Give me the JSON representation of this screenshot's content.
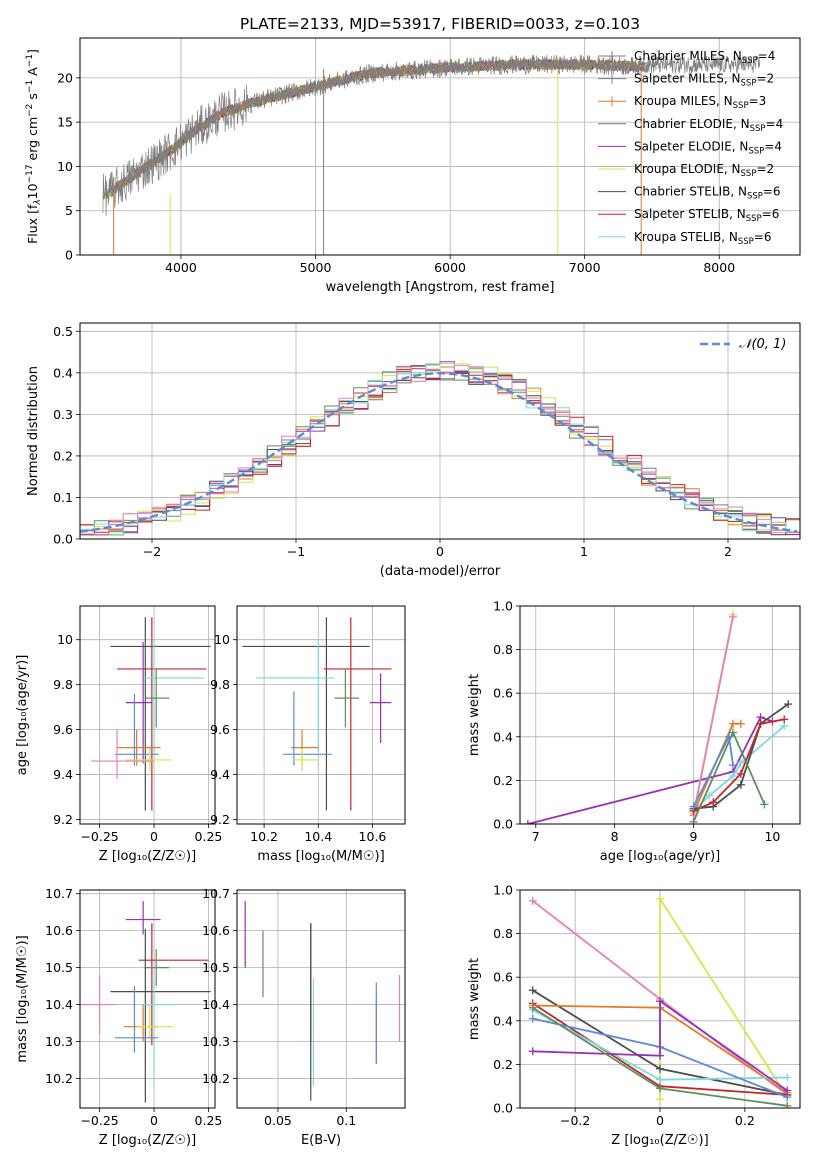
{
  "figure_title": "PLATE=2133, MJD=53917, FIBERID=0033, z=0.103",
  "colors": {
    "Chabrier MILES": "#7f7f7f",
    "Salpeter MILES": "#808080",
    "Kroupa MILES": "#e07b2b",
    "Chabrier ELODIE": "#5f8f5f",
    "Salpeter ELODIE": "#9b30b5",
    "Kroupa ELODIE": "#d4e84a",
    "Chabrier STELIB": "#4d4d4d",
    "Salpeter STELIB": "#c1272d",
    "Kroupa STELIB": "#7fd8dc",
    "extra_blue": "#5b8bd6",
    "extra_pink": "#e77fbf",
    "normal_curve": "#5b8bd6"
  },
  "chart_data": [
    {
      "id": "spectrum",
      "type": "line",
      "title": "PLATE=2133, MJD=53917, FIBERID=0033, z=0.103",
      "xlabel": "wavelength [Angstrom, rest frame]",
      "ylabel_parts": [
        "Flux [f",
        "λ",
        "10",
        "−17",
        " erg cm",
        "−2",
        " s",
        "−1",
        " A",
        "−1",
        "]"
      ],
      "xlim": [
        3250,
        8600
      ],
      "ylim": [
        0,
        24.5
      ],
      "xticks": [
        4000,
        5000,
        6000,
        7000,
        8000
      ],
      "yticks": [
        0,
        5,
        10,
        15,
        20
      ],
      "legend_position": "right",
      "legend": [
        {
          "name": "Chabrier MILES",
          "nssp": "4"
        },
        {
          "name": "Salpeter MILES",
          "nssp": "2"
        },
        {
          "name": "Kroupa MILES",
          "nssp": "3"
        },
        {
          "name": "Chabrier ELODIE",
          "nssp": "4"
        },
        {
          "name": "Salpeter ELODIE",
          "nssp": "4"
        },
        {
          "name": "Kroupa ELODIE",
          "nssp": "2"
        },
        {
          "name": "Chabrier STELIB",
          "nssp": "6"
        },
        {
          "name": "Salpeter STELIB",
          "nssp": "6"
        },
        {
          "name": "Kroupa STELIB",
          "nssp": "6"
        }
      ],
      "continuum_x": [
        3450,
        3700,
        3900,
        4100,
        4300,
        4600,
        5000,
        5400,
        6000,
        6500,
        7000,
        7400
      ],
      "continuum_y": [
        6.8,
        9.5,
        11.5,
        14,
        16,
        17.5,
        19,
        20.5,
        21.2,
        21.5,
        21.5,
        21.3
      ]
    },
    {
      "id": "residuals",
      "type": "histogram",
      "xlabel": "(data-model)/error",
      "ylabel": "Normed distribution",
      "xlim": [
        -2.5,
        2.5
      ],
      "ylim": [
        0,
        0.52
      ],
      "xticks": [
        -2,
        -1,
        0,
        1,
        2
      ],
      "yticks": [
        0.0,
        0.1,
        0.2,
        0.3,
        0.4,
        0.5
      ],
      "legend_label": "𝒩(0, 1)",
      "legend_position": "top-right",
      "bin_width": 0.1
    },
    {
      "id": "age_vs_Z",
      "type": "scatter-errorbar",
      "xlabel": "Z [log₁₀(Z/Z☉)]",
      "ylabel": "age  [log₁₀(age/yr)]",
      "xlim": [
        -0.34,
        0.28
      ],
      "ylim": [
        9.18,
        10.15
      ],
      "xticks": [
        -0.25,
        0.0,
        0.25
      ],
      "yticks": [
        9.2,
        9.4,
        9.6,
        9.8,
        10.0
      ],
      "points": [
        {
          "c": "Chabrier STELIB",
          "x": -0.04,
          "xe": [
            0.16,
            0.3
          ],
          "y": 9.97,
          "ye": [
            0.73,
            0.13
          ]
        },
        {
          "c": "Salpeter STELIB",
          "x": -0.01,
          "xe": [
            0.16,
            0.25
          ],
          "y": 9.87,
          "ye": [
            0.63,
            0.23
          ]
        },
        {
          "c": "Kroupa STELIB",
          "x": 0.0,
          "xe": [
            0.05,
            0.23
          ],
          "y": 9.83,
          "ye": [
            0.33,
            0.17
          ]
        },
        {
          "c": "Chabrier ELODIE",
          "x": 0.01,
          "xe": [
            0.05,
            0.06
          ],
          "y": 9.74,
          "ye": [
            0.13,
            0.13
          ]
        },
        {
          "c": "Salpeter ELODIE",
          "x": -0.05,
          "xe": [
            0.08,
            0.04
          ],
          "y": 9.72,
          "ye": [
            0.27,
            0.27
          ]
        },
        {
          "c": "Kroupa MILES",
          "x": -0.08,
          "xe": [
            0.09,
            0.11
          ],
          "y": 9.52,
          "ye": [
            0.08,
            0.08
          ]
        },
        {
          "c": "extra_blue",
          "x": -0.09,
          "xe": [
            0.09,
            0.11
          ],
          "y": 9.49,
          "ye": [
            0.05,
            0.27
          ]
        },
        {
          "c": "Kroupa ELODIE",
          "x": -0.02,
          "xe": [
            0.11,
            0.1
          ],
          "y": 9.465,
          "ye": [
            0.05,
            0.05
          ]
        },
        {
          "c": "extra_pink",
          "x": -0.17,
          "xe": [
            0.12,
            0.17
          ],
          "y": 9.46,
          "ye": [
            0.08,
            0.14
          ]
        }
      ]
    },
    {
      "id": "age_vs_mass",
      "type": "scatter-errorbar",
      "xlabel": "mass [log₁₀(M/M☉)]",
      "ylabel": "",
      "xlim": [
        10.1,
        10.72
      ],
      "ylim": [
        9.18,
        10.15
      ],
      "xticks": [
        10.2,
        10.4,
        10.6
      ],
      "yticks": [
        9.2,
        9.4,
        9.6,
        9.8,
        10.0
      ],
      "points": [
        {
          "c": "Chabrier STELIB",
          "x": 10.43,
          "xe": [
            0.31,
            0.16
          ],
          "y": 9.97,
          "ye": [
            0.73,
            0.13
          ]
        },
        {
          "c": "Salpeter STELIB",
          "x": 10.52,
          "xe": [
            0.1,
            0.15
          ],
          "y": 9.87,
          "ye": [
            0.63,
            0.23
          ]
        },
        {
          "c": "Kroupa STELIB",
          "x": 10.4,
          "xe": [
            0.23,
            0.06
          ],
          "y": 9.83,
          "ye": [
            0.33,
            0.17
          ]
        },
        {
          "c": "Chabrier ELODIE",
          "x": 10.5,
          "xe": [
            0.04,
            0.05
          ],
          "y": 9.74,
          "ye": [
            0.13,
            0.13
          ]
        },
        {
          "c": "Salpeter ELODIE",
          "x": 10.63,
          "xe": [
            0.04,
            0.04
          ],
          "y": 9.72,
          "ye": [
            0.18,
            0.13
          ]
        },
        {
          "c": "Kroupa MILES",
          "x": 10.34,
          "xe": [
            0.04,
            0.06
          ],
          "y": 9.52,
          "ye": [
            0.08,
            0.08
          ]
        },
        {
          "c": "extra_blue",
          "x": 10.31,
          "xe": [
            0.04,
            0.14
          ],
          "y": 9.49,
          "ye": [
            0.05,
            0.28
          ]
        },
        {
          "c": "Kroupa ELODIE",
          "x": 10.34,
          "xe": [
            0.03,
            0.06
          ],
          "y": 9.465,
          "ye": [
            0.05,
            0.05
          ]
        }
      ]
    },
    {
      "id": "weight_vs_age",
      "type": "line",
      "xlabel": "age  [log₁₀(age/yr)]",
      "ylabel": "mass weight",
      "xlim": [
        6.8,
        10.35
      ],
      "ylim": [
        0,
        1.0
      ],
      "xticks": [
        7,
        8,
        9,
        10
      ],
      "yticks": [
        0.0,
        0.2,
        0.4,
        0.6,
        0.8,
        1.0
      ],
      "series": [
        {
          "c": "Salpeter ELODIE",
          "x": [
            6.9,
            9.5,
            9.85,
            10.0
          ],
          "y": [
            0.0,
            0.24,
            0.49,
            0.47
          ]
        },
        {
          "c": "Kroupa MILES",
          "x": [
            9.0,
            9.5,
            9.6
          ],
          "y": [
            0.05,
            0.46,
            0.46
          ]
        },
        {
          "c": "Kroupa ELODIE",
          "x": [
            9.0,
            9.5
          ],
          "y": [
            0.05,
            0.96
          ]
        },
        {
          "c": "Kroupa STELIB",
          "x": [
            9.0,
            9.2,
            9.5,
            9.6,
            10.15
          ],
          "y": [
            0.06,
            0.13,
            0.22,
            0.28,
            0.45
          ]
        },
        {
          "c": "extra_pink",
          "x": [
            9.0,
            9.5
          ],
          "y": [
            0.04,
            0.95
          ]
        },
        {
          "c": "Chabrier STELIB",
          "x": [
            9.0,
            9.25,
            9.6,
            9.85,
            10.2
          ],
          "y": [
            0.07,
            0.08,
            0.18,
            0.46,
            0.55
          ]
        },
        {
          "c": "Salpeter STELIB",
          "x": [
            9.0,
            9.25,
            9.6,
            9.85,
            10.15
          ],
          "y": [
            0.06,
            0.1,
            0.23,
            0.46,
            0.48
          ]
        },
        {
          "c": "Chabrier ELODIE",
          "x": [
            9.0,
            9.5,
            9.9
          ],
          "y": [
            0.01,
            0.42,
            0.09
          ]
        },
        {
          "c": "extra_blue",
          "x": [
            9.0,
            9.45,
            9.5
          ],
          "y": [
            0.08,
            0.4,
            0.27
          ]
        }
      ]
    },
    {
      "id": "mass_vs_Z",
      "type": "scatter-errorbar",
      "xlabel": "Z [log₁₀(Z/Z☉)]",
      "ylabel": "mass [log₁₀(M/M☉)]",
      "xlim": [
        -0.34,
        0.28
      ],
      "ylim": [
        10.12,
        10.71
      ],
      "xticks": [
        -0.25,
        0.0,
        0.25
      ],
      "yticks": [
        10.2,
        10.3,
        10.4,
        10.5,
        10.6,
        10.7
      ],
      "points": [
        {
          "c": "Salpeter ELODIE",
          "x": -0.05,
          "xe": [
            0.08,
            0.08
          ],
          "y": 10.63,
          "ye": [
            0.04,
            0.05
          ]
        },
        {
          "c": "Salpeter STELIB",
          "x": -0.01,
          "xe": [
            0.06,
            0.26
          ],
          "y": 10.52,
          "ye": [
            0.23,
            0.1
          ]
        },
        {
          "c": "Chabrier ELODIE",
          "x": 0.01,
          "xe": [
            0.05,
            0.06
          ],
          "y": 10.5,
          "ye": [
            0.05,
            0.05
          ]
        },
        {
          "c": "Chabrier STELIB",
          "x": -0.04,
          "xe": [
            0.16,
            0.3
          ],
          "y": 10.435,
          "ye": [
            0.3,
            0.17
          ]
        },
        {
          "c": "Kroupa STELIB",
          "x": 0.0,
          "xe": [
            0.07,
            0.11
          ],
          "y": 10.4,
          "ye": [
            0.22,
            0.07
          ]
        },
        {
          "c": "extra_pink",
          "x": -0.25,
          "xe": [
            0.09,
            0.08
          ],
          "y": 10.4,
          "ye": [
            0.08,
            0.08
          ]
        },
        {
          "c": "Kroupa MILES",
          "x": -0.05,
          "xe": [
            0.09,
            0.07
          ],
          "y": 10.34,
          "ye": [
            0.04,
            0.06
          ]
        },
        {
          "c": "Kroupa ELODIE",
          "x": -0.02,
          "xe": [
            0.06,
            0.11
          ],
          "y": 10.34,
          "ye": [
            0.03,
            0.06
          ]
        },
        {
          "c": "extra_blue",
          "x": -0.09,
          "xe": [
            0.09,
            0.11
          ],
          "y": 10.31,
          "ye": [
            0.04,
            0.14
          ]
        }
      ]
    },
    {
      "id": "mass_vs_ebv",
      "type": "scatter-errorbar",
      "xlabel": "E(B-V)",
      "ylabel": "",
      "xlim": [
        0.02,
        0.143
      ],
      "ylim": [
        10.12,
        10.71
      ],
      "xticks": [
        0.05,
        0.1
      ],
      "yticks": [
        10.2,
        10.3,
        10.4,
        10.5,
        10.6,
        10.7
      ],
      "points": [
        {
          "c": "Salpeter ELODIE",
          "x": 0.026,
          "y": 10.59,
          "ye": [
            0.09,
            0.09
          ]
        },
        {
          "c": "Chabrier ELODIE",
          "x": 0.039,
          "y": 10.51,
          "ye": [
            0.09,
            0.09
          ]
        },
        {
          "c": "Salpeter STELIB",
          "x": 0.074,
          "y": 10.45,
          "ye": [
            0.15,
            0.17
          ]
        },
        {
          "c": "Chabrier STELIB",
          "x": 0.074,
          "y": 10.38,
          "ye": [
            0.24,
            0.24
          ]
        },
        {
          "c": "Kroupa STELIB",
          "x": 0.076,
          "y": 10.4,
          "ye": [
            0.22,
            0.07
          ]
        },
        {
          "c": "Kroupa MILES",
          "x": 0.122,
          "y": 10.33,
          "ye": [
            0.09,
            0.09
          ]
        },
        {
          "c": "extra_blue",
          "x": 0.122,
          "y": 10.35,
          "ye": [
            0.11,
            0.11
          ]
        },
        {
          "c": "extra_pink",
          "x": 0.139,
          "y": 10.39,
          "ye": [
            0.09,
            0.09
          ]
        }
      ]
    },
    {
      "id": "weight_vs_Z",
      "type": "line",
      "xlabel": "Z [log₁₀(Z/Z☉)]",
      "ylabel": "mass weight",
      "xlim": [
        -0.33,
        0.33
      ],
      "ylim": [
        0,
        1.0
      ],
      "xticks": [
        -0.2,
        0.0,
        0.2
      ],
      "yticks": [
        0.0,
        0.2,
        0.4,
        0.6,
        0.8,
        1.0
      ],
      "series": [
        {
          "c": "extra_pink",
          "x": [
            -0.3,
            0.0,
            0.3
          ],
          "y": [
            0.95,
            0.5,
            0.06
          ]
        },
        {
          "c": "Kroupa ELODIE",
          "x": [
            0.0,
            0.0,
            0.3
          ],
          "y": [
            0.04,
            0.96,
            0.05
          ]
        },
        {
          "c": "Chabrier STELIB",
          "x": [
            -0.3,
            0.0,
            0.3
          ],
          "y": [
            0.54,
            0.18,
            0.06
          ]
        },
        {
          "c": "Salpeter STELIB",
          "x": [
            -0.3,
            0.0,
            0.3
          ],
          "y": [
            0.48,
            0.1,
            0.06
          ]
        },
        {
          "c": "Kroupa MILES",
          "x": [
            -0.3,
            0.0,
            0.3
          ],
          "y": [
            0.47,
            0.46,
            0.07
          ]
        },
        {
          "c": "Kroupa STELIB",
          "x": [
            -0.3,
            0.0,
            0.3
          ],
          "y": [
            0.45,
            0.13,
            0.14
          ]
        },
        {
          "c": "extra_blue",
          "x": [
            -0.3,
            0.0,
            0.3
          ],
          "y": [
            0.41,
            0.28,
            0.05
          ]
        },
        {
          "c": "Salpeter ELODIE",
          "x": [
            -0.3,
            0.0,
            0.0,
            0.3
          ],
          "y": [
            0.26,
            0.24,
            0.49,
            0.08
          ]
        },
        {
          "c": "Chabrier ELODIE",
          "x": [
            -0.3,
            0.0,
            0.3
          ],
          "y": [
            0.46,
            0.09,
            0.01
          ]
        }
      ]
    }
  ]
}
